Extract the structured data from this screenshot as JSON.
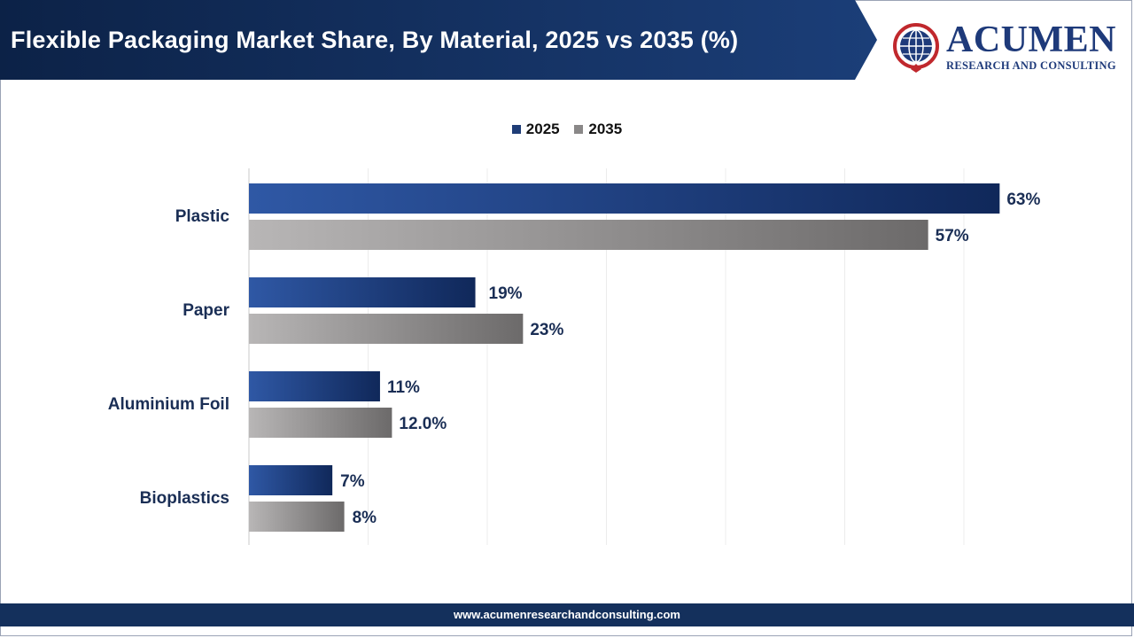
{
  "header": {
    "title": "Flexible Packaging Market Share, By Material, 2025 vs 2035 (%)"
  },
  "logo": {
    "name": "ACUMEN",
    "subtitle": "RESEARCH AND CONSULTING",
    "icon": "globe-icon"
  },
  "footer": {
    "url": "www.acumenresearchandconsulting.com"
  },
  "colors": {
    "header_dark": "#0f2a52",
    "series_2025": "#1f3d77",
    "series_2035": "#8a8888",
    "label_text": "#1a2e55"
  },
  "chart_data": {
    "type": "bar",
    "orientation": "horizontal",
    "title": "Flexible Packaging Market Share, By Material, 2025 vs 2035 (%)",
    "categories": [
      "Plastic",
      "Paper",
      "Aluminium Foil",
      "Bioplastics"
    ],
    "series": [
      {
        "name": "2025",
        "values": [
          63,
          19,
          11,
          7
        ],
        "labels": [
          "63%",
          "19%",
          "11%",
          "7%"
        ]
      },
      {
        "name": "2035",
        "values": [
          57,
          23,
          12.0,
          8
        ],
        "labels": [
          "57%",
          "23%",
          "12.0%",
          "8%"
        ]
      }
    ],
    "xlim": [
      0,
      60
    ],
    "grid": "vertical",
    "legend": "top-center"
  }
}
